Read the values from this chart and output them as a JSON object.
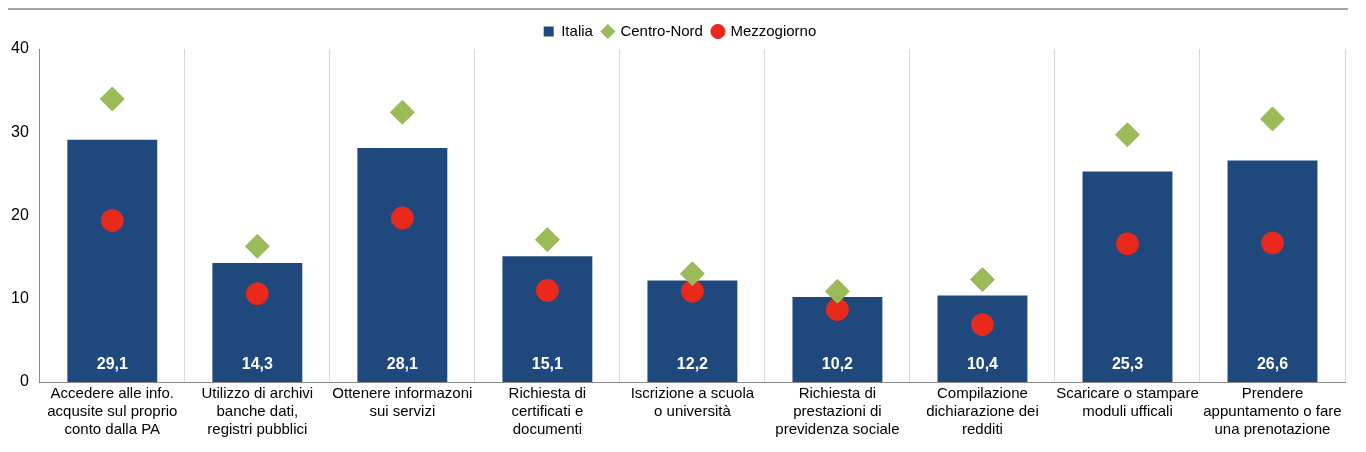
{
  "chart_data": {
    "type": "bar",
    "categories": [
      "Accedere alle info. acqusite sul proprio conto dalla PA",
      "Utilizzo di archivi banche dati, registri pubblici",
      "Ottenere informazoni sui servizi",
      "Richiesta di certificati e documenti",
      "Iscrizione a scuola o università",
      "Richiesta di prestazioni di previdenza sociale",
      "Compilazione dichiarazione dei redditi",
      "Scaricare o stampare moduli ufficali",
      "Prendere appuntamento o fare una prenotazione"
    ],
    "series": [
      {
        "name": "Italia",
        "color": "#1f497d",
        "values": [
          29.1,
          14.3,
          28.1,
          15.1,
          12.2,
          10.2,
          10.4,
          25.3,
          26.6
        ],
        "value_labels": [
          "29,1",
          "14,3",
          "28,1",
          "15,1",
          "12,2",
          "10,2",
          "10,4",
          "25,3",
          "26,6"
        ]
      },
      {
        "name": "Centro-Nord",
        "type": "scatter",
        "marker": "diamond",
        "color": "#9bbb59",
        "values": [
          34.0,
          16.3,
          32.4,
          17.1,
          13.0,
          10.9,
          12.3,
          29.7,
          31.6
        ]
      },
      {
        "name": "Mezzogiorno",
        "type": "scatter",
        "marker": "circle",
        "color": "#e8291c",
        "values": [
          19.4,
          10.6,
          19.7,
          11.0,
          10.9,
          8.7,
          6.9,
          16.6,
          16.7
        ]
      }
    ],
    "ylim": [
      0,
      40
    ],
    "yticks": [
      0,
      10,
      20,
      30,
      40
    ],
    "grid": "x",
    "legend": "top"
  }
}
